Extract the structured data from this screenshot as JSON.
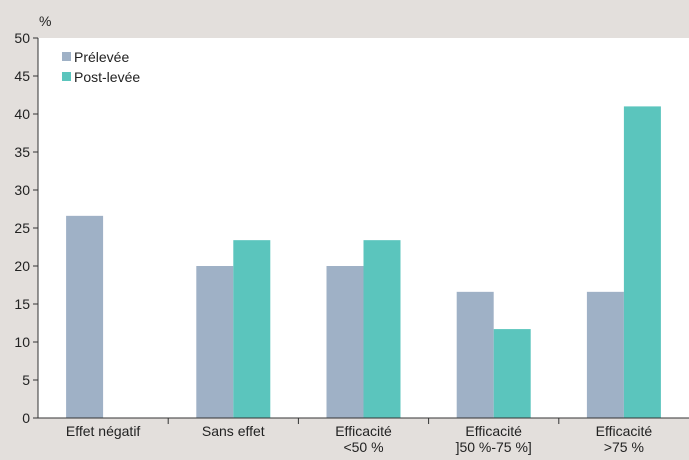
{
  "chart_data": {
    "type": "bar",
    "ylabel": "%",
    "ylim": [
      0,
      50
    ],
    "yticks": [
      0,
      5,
      10,
      15,
      20,
      25,
      30,
      35,
      40,
      45,
      50
    ],
    "categories": [
      [
        "Effet négatif"
      ],
      [
        "Sans effet"
      ],
      [
        "Efficacité",
        "<50 %"
      ],
      [
        "Efficacité",
        "]50 %-75 %]"
      ],
      [
        "Efficacité",
        ">75 %"
      ]
    ],
    "series": [
      {
        "name": "Prélevée",
        "color": "#9fb1c6",
        "values": [
          26.6,
          20,
          20,
          16.6,
          16.6
        ]
      },
      {
        "name": "Post-levée",
        "color": "#5bc5bd",
        "values": [
          null,
          23.4,
          23.4,
          11.7,
          41
        ]
      }
    ],
    "legend": "top-left",
    "grid": false
  }
}
